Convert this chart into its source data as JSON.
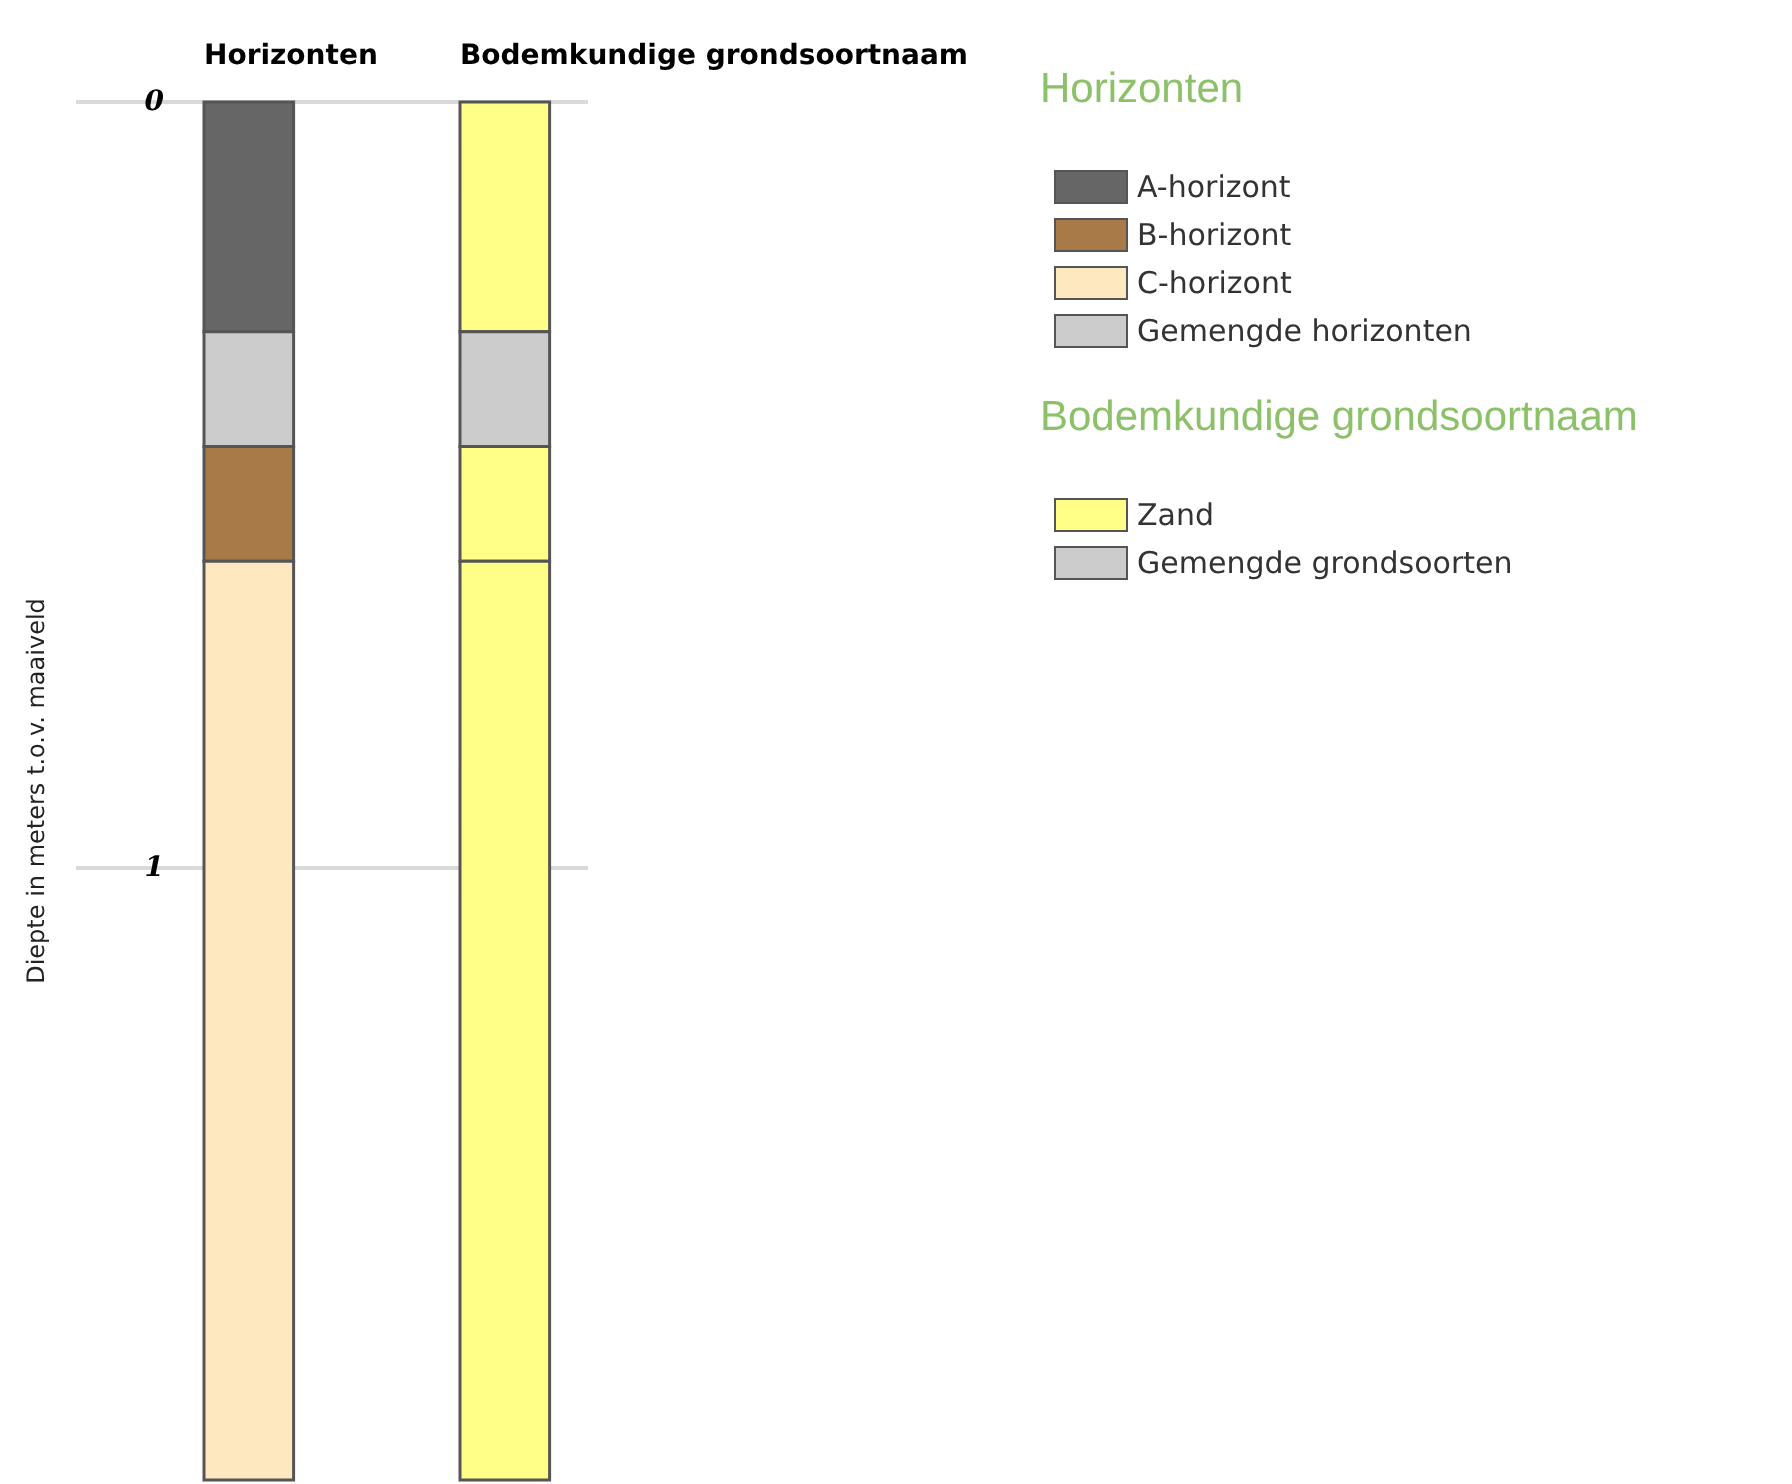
{
  "chart_data": {
    "type": "bar",
    "categories": [
      "Horizonten",
      "Bodemkundige grondsoortnaam"
    ],
    "ylabel": "Diepte in meters t.o.v. maaiveld",
    "annotations": [
      "Horizonten",
      "Bodemkundige grondsoortnaam"
    ],
    "ylim": [
      1.8,
      0
    ],
    "yticks": [
      0,
      1
    ],
    "grid": "y",
    "legend": "right",
    "series": [
      {
        "name": "A-horizont",
        "color": "#666666",
        "values": [
          0.3,
          null
        ],
        "base": [
          0,
          null
        ]
      },
      {
        "name": "B-horizont",
        "color": "#a87a48",
        "values": [
          0.15,
          null
        ],
        "base": [
          0.45,
          null
        ]
      },
      {
        "name": "C-horizont",
        "color": "#fde8c0",
        "values": [
          1.2,
          null
        ],
        "base": [
          0.6,
          null
        ]
      },
      {
        "name": "Gemengde horizonten",
        "color": "#cccccc",
        "values": [
          0.15,
          null
        ],
        "base": [
          0.3,
          null
        ]
      },
      {
        "name": "Zand",
        "color": "#ffff88",
        "values": [
          null,
          0.3
        ],
        "base": [
          null,
          0
        ]
      },
      {
        "name": "Gemengde grondsoorten",
        "color": "#cccccc",
        "values": [
          null,
          0.15
        ],
        "base": [
          null,
          0.3
        ]
      },
      {
        "color": "#ffff88",
        "values": [
          null,
          0.15
        ],
        "base": [
          null,
          0.45
        ]
      },
      {
        "color": "#ffff88",
        "values": [
          null,
          1.2
        ],
        "base": [
          null,
          0.6
        ]
      }
    ]
  }
}
